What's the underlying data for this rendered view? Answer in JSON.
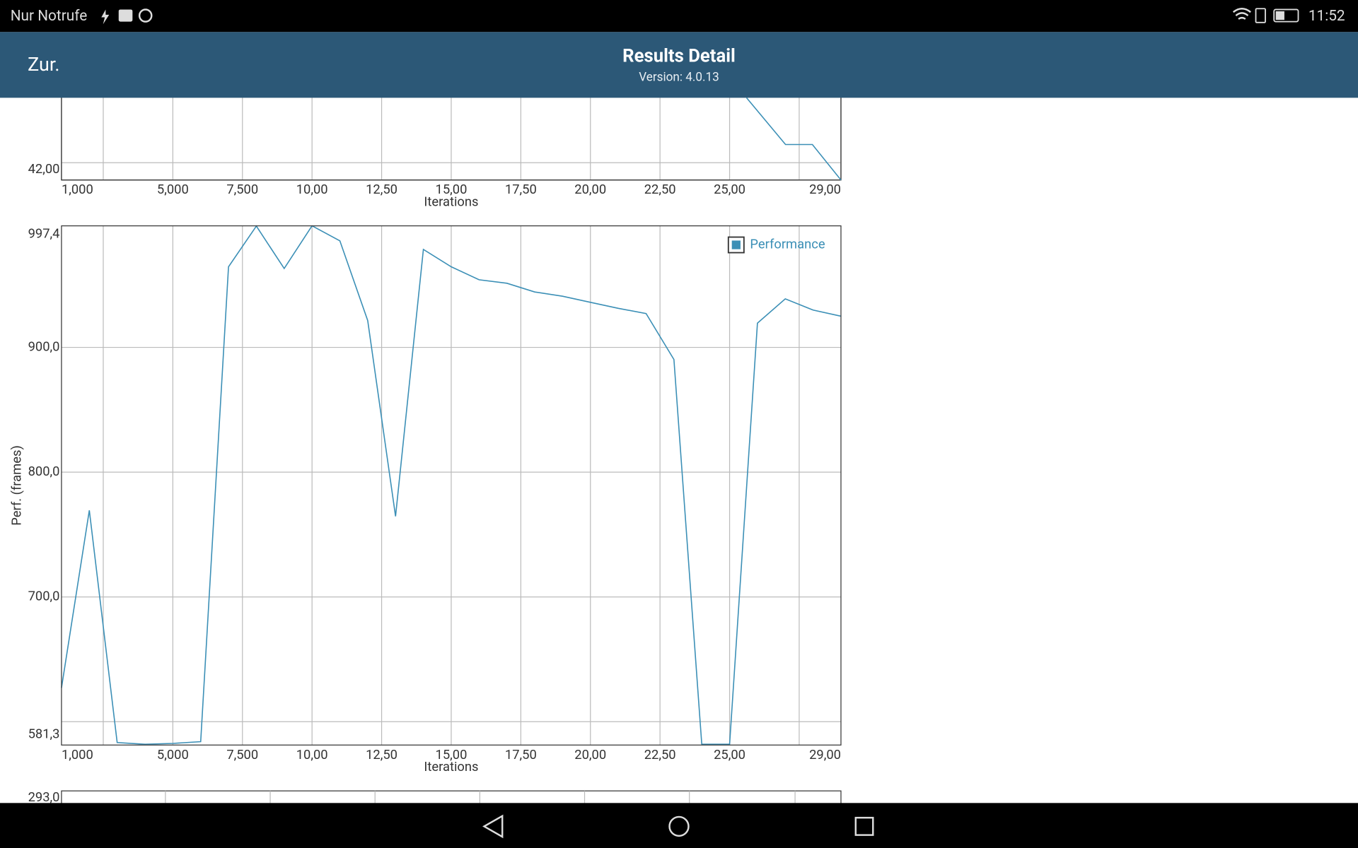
{
  "status_bar": {
    "carrier": "Nur Notrufe",
    "time": "11:52"
  },
  "header": {
    "back": "Zur.",
    "title": "Results Detail",
    "subtitle": "Version: 4.0.13"
  },
  "chart_data": [
    {
      "type": "line",
      "x_label": "Iterations",
      "y_tick_label": "42,00",
      "xlim": [
        1000,
        29000
      ],
      "xticks": [
        {
          "value": 1000,
          "label": "1,000"
        },
        {
          "value": 5000,
          "label": "5,000"
        },
        {
          "value": 7500,
          "label": "7,500"
        },
        {
          "value": 10000,
          "label": "10,00"
        },
        {
          "value": 12500,
          "label": "12,50"
        },
        {
          "value": 15000,
          "label": "15,00"
        },
        {
          "value": 17500,
          "label": "17,50"
        },
        {
          "value": 20000,
          "label": "20,00"
        },
        {
          "value": 22500,
          "label": "22,50"
        },
        {
          "value": 25000,
          "label": "25,00"
        },
        {
          "value": 29000,
          "label": "29,00"
        }
      ],
      "xgrid": [
        2500,
        5000,
        7500,
        10000,
        12500,
        15000,
        17500,
        20000,
        22500,
        25000,
        27500
      ]
    },
    {
      "type": "line",
      "x_label": "Iterations",
      "y_label": "Perf. (frames)",
      "x": [
        1000,
        2000,
        3000,
        4000,
        5000,
        6000,
        7000,
        8000,
        9000,
        10000,
        11000,
        12000,
        13000,
        14000,
        15000,
        16000,
        17000,
        18000,
        19000,
        20000,
        21000,
        22000,
        23000,
        24000,
        25000,
        26000,
        27000,
        28000,
        29000
      ],
      "series": [
        {
          "name": "Performance",
          "color": "#3b8fb6",
          "values": [
            627.1,
            769.4,
            583.3,
            581.9,
            582.6,
            584,
            964.6,
            997.2,
            963.2,
            997.4,
            985.4,
            921.5,
            764.6,
            978.5,
            964.6,
            954.2,
            951.4,
            944.4,
            941,
            936.1,
            931.3,
            927.1,
            890.3,
            581.9,
            581.9,
            919.4,
            938.9,
            929.9,
            925
          ]
        }
      ],
      "xlim": [
        1000,
        29000
      ],
      "ylim": [
        581.3,
        997.4
      ],
      "xticks": [
        {
          "value": 1000,
          "label": "1,000"
        },
        {
          "value": 5000,
          "label": "5,000"
        },
        {
          "value": 7500,
          "label": "7,500"
        },
        {
          "value": 10000,
          "label": "10,00"
        },
        {
          "value": 12500,
          "label": "12,50"
        },
        {
          "value": 15000,
          "label": "15,00"
        },
        {
          "value": 17500,
          "label": "17,50"
        },
        {
          "value": 20000,
          "label": "20,00"
        },
        {
          "value": 22500,
          "label": "22,50"
        },
        {
          "value": 25000,
          "label": "25,00"
        },
        {
          "value": 29000,
          "label": "29,00"
        }
      ],
      "xgrid": [
        2500,
        5000,
        7500,
        10000,
        12500,
        15000,
        17500,
        20000,
        22500,
        25000,
        27500
      ],
      "yticks": [
        {
          "value": 581.3,
          "label": "581,3"
        },
        {
          "value": 700,
          "label": "700,0"
        },
        {
          "value": 800,
          "label": "800,0"
        },
        {
          "value": 900,
          "label": "900,0"
        },
        {
          "value": 997.4,
          "label": "997,4"
        }
      ],
      "ygrid": [
        600,
        700,
        800,
        900
      ],
      "legend": "top-right"
    },
    {
      "type": "line",
      "y_tick_label": "293,0"
    }
  ]
}
